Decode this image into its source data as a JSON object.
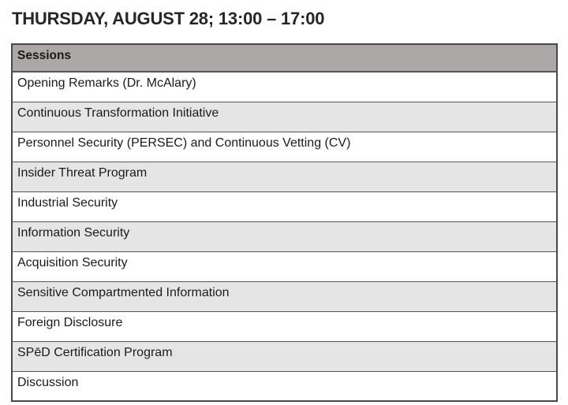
{
  "title": "THURSDAY, AUGUST 28; 13:00 – 17:00",
  "table": {
    "header": "Sessions",
    "rows": [
      "Opening Remarks (Dr. McAlary)",
      "Continuous Transformation Initiative",
      "Personnel Security (PERSEC) and Continuous Vetting (CV)",
      "Insider Threat Program",
      "Industrial Security",
      "Information Security",
      "Acquisition Security",
      "Sensitive Compartmented Information",
      "Foreign Disclosure",
      "SPēD Certification Program",
      "Discussion"
    ]
  },
  "colors": {
    "page_bg": "#FFFFFF",
    "header_bg": "#ACA8A8",
    "band_bg": "#E6E5E5",
    "border": "#565454",
    "outer_border": "#4A4848",
    "text": "#1A1A1A",
    "title": "#262626"
  }
}
